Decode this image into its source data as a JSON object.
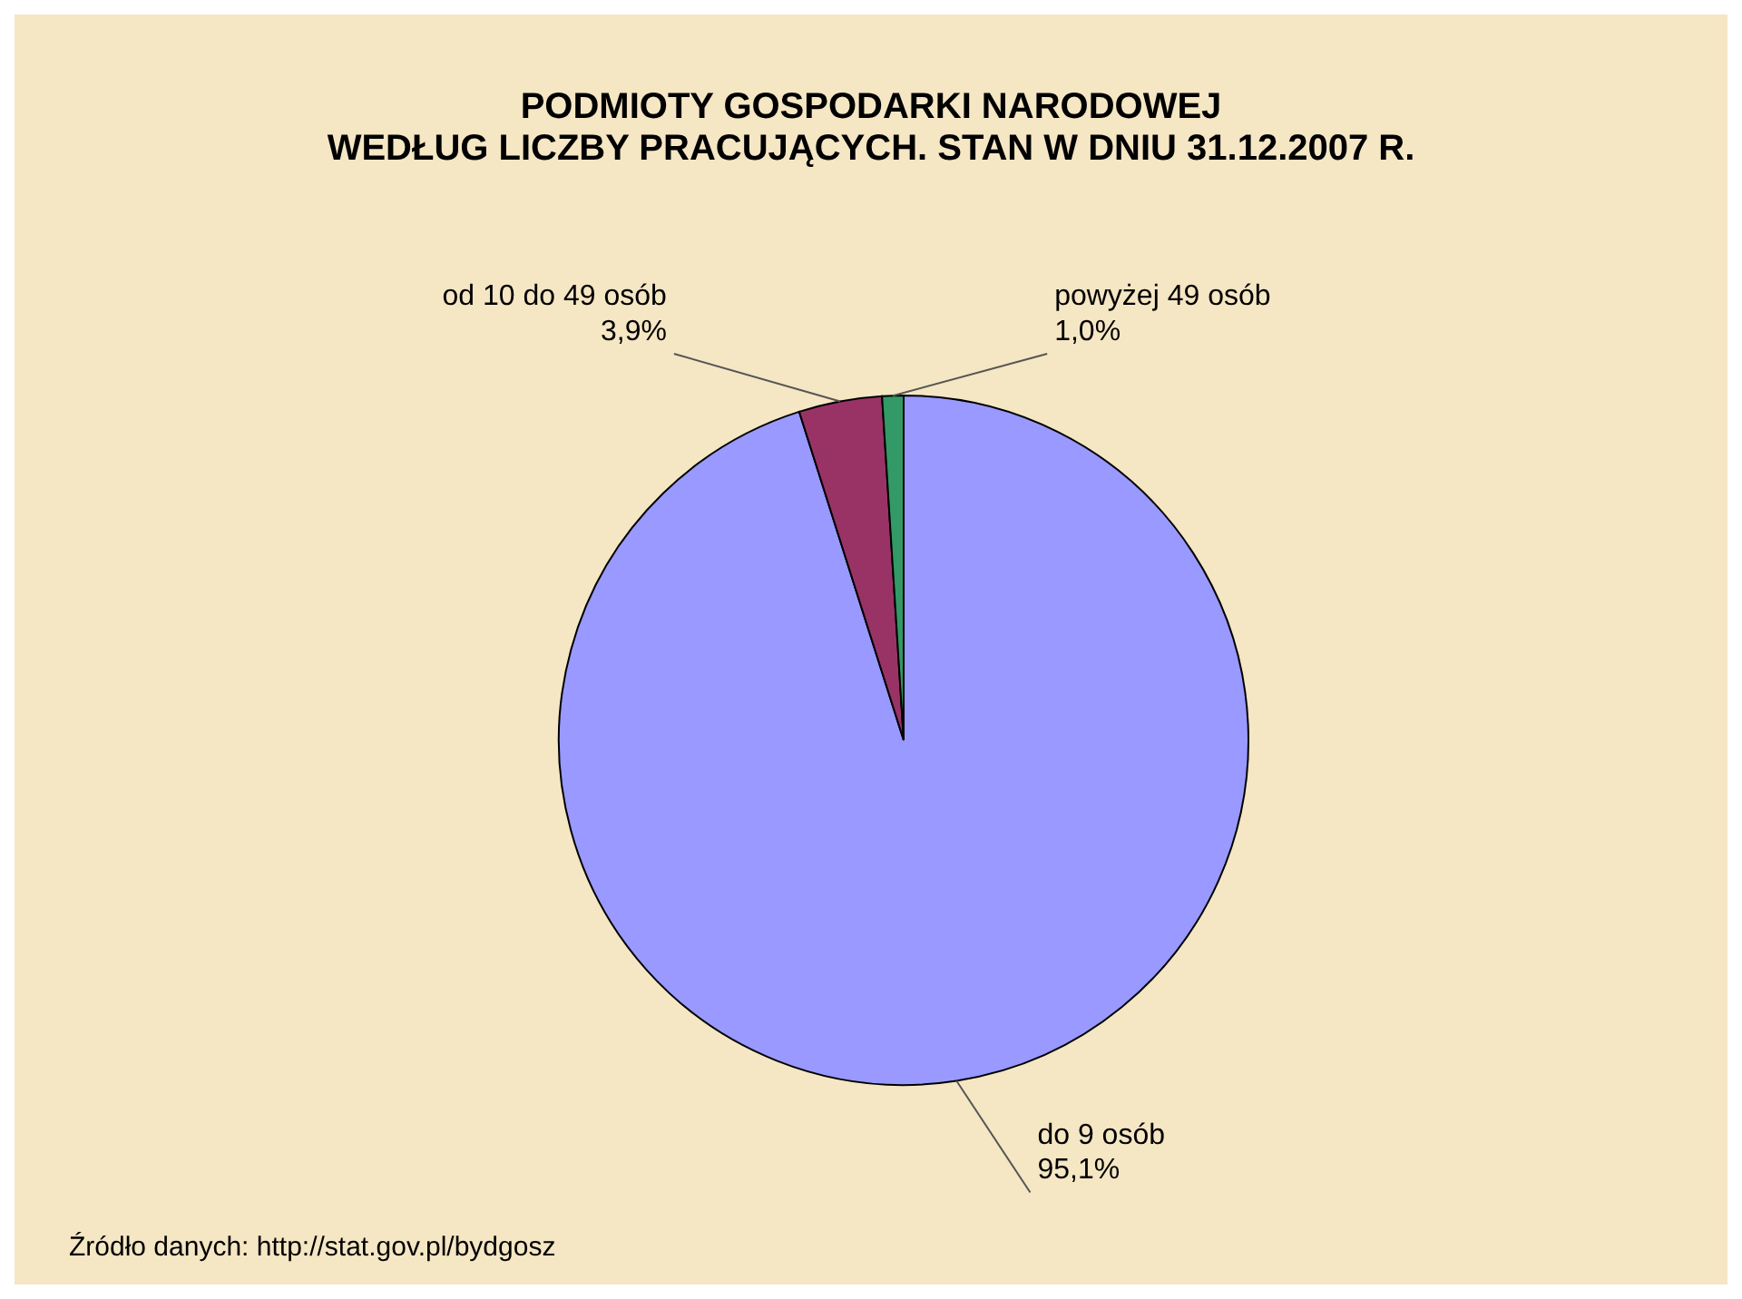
{
  "chart_data": {
    "type": "pie",
    "title": "PODMIOTY GOSPODARKI NARODOWEJ",
    "subtitle": "WEDŁUG LICZBY PRACUJĄCYCH. STAN W DNIU 31.12.2007 R.",
    "categories": [
      "do 9 osób",
      "od 10 do 49 osób",
      "powyżej 49 osób"
    ],
    "values": [
      95.1,
      3.9,
      1.0
    ],
    "value_labels": [
      "95,1%",
      "3,9%",
      "1,0%"
    ],
    "colors": [
      "#9999ff",
      "#993366",
      "#339966"
    ],
    "legend": false,
    "annotations": [
      "Źródło danych: http://stat.gov.pl/bydgosz"
    ]
  }
}
